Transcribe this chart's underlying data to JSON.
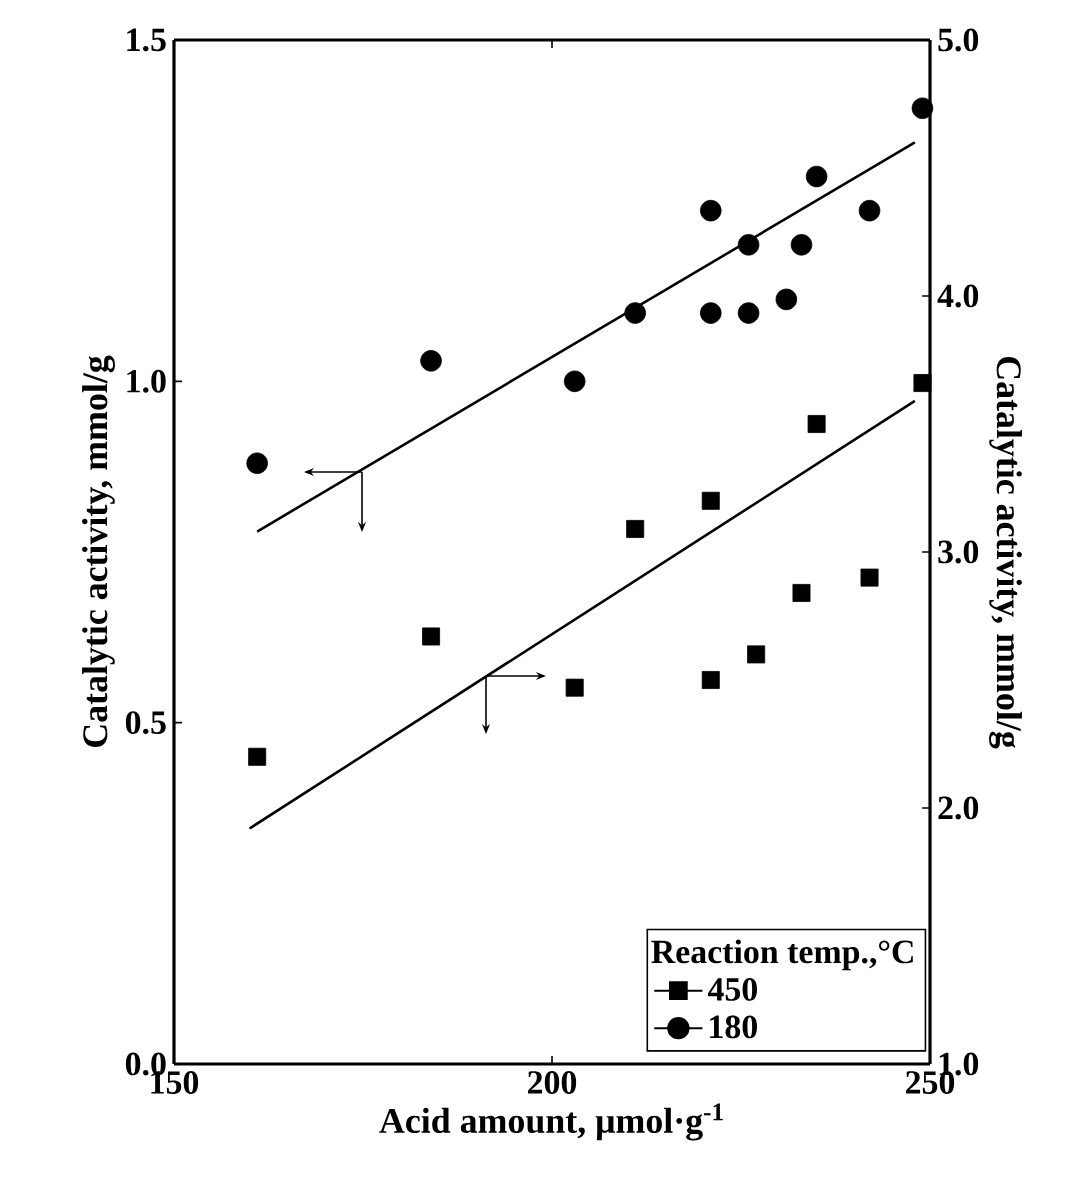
{
  "chart_data": {
    "type": "scatter",
    "xlabel": "Acid amount, μmol·g$^{-1}$",
    "ylabel": "Catalytic activity, mmol/g",
    "y2label": "Catalytic activity, mmol/g",
    "legend_title": "Reaction temp.,°C",
    "legend": "bottom right",
    "grid": false,
    "xlim": [
      150,
      250
    ],
    "xticks": [
      150,
      200,
      250
    ],
    "ylim": [
      0,
      1.5
    ],
    "yticks": [
      {
        "value": 0,
        "label": "0.0"
      },
      {
        "value": 0.5,
        "label": "0.5"
      },
      {
        "value": 1,
        "label": "1.0"
      },
      {
        "value": 1.5,
        "label": "1.5"
      }
    ],
    "y2lim": [
      1,
      5
    ],
    "y2ticks": [
      {
        "value": 1,
        "label": "1.0"
      },
      {
        "value": 2,
        "label": "2.0"
      },
      {
        "value": 3,
        "label": "3.0"
      },
      {
        "value": 4,
        "label": "4.0"
      },
      {
        "value": 5,
        "label": "5.0"
      }
    ],
    "series": [
      {
        "name": "450",
        "color": "#000000",
        "marker": "square",
        "axis": "y2",
        "x": [
          161,
          184,
          203,
          211,
          221,
          221,
          227,
          233,
          235,
          242,
          249
        ],
        "values": [
          2.2,
          2.67,
          2.47,
          3.09,
          3.2,
          2.5,
          2.6,
          2.84,
          3.5,
          2.9,
          3.66
        ]
      },
      {
        "name": "180",
        "color": "#000000",
        "marker": "circle",
        "axis": "y",
        "x": [
          161,
          184,
          203,
          211,
          221,
          221,
          226,
          226,
          231,
          233,
          235,
          242,
          249
        ],
        "values": [
          0.88,
          1.03,
          1.0,
          1.1,
          1.25,
          1.1,
          1.1,
          1.2,
          1.12,
          1.2,
          1.3,
          1.25,
          1.4
        ]
      },
      {
        "type": "line",
        "color": "#000000",
        "axis": "y2",
        "x": [
          160,
          248
        ],
        "values": [
          1.92,
          3.59
        ]
      },
      {
        "type": "line",
        "color": "#000000",
        "axis": "y",
        "x": [
          161,
          248
        ],
        "values": [
          0.78,
          1.35
        ]
      }
    ]
  }
}
